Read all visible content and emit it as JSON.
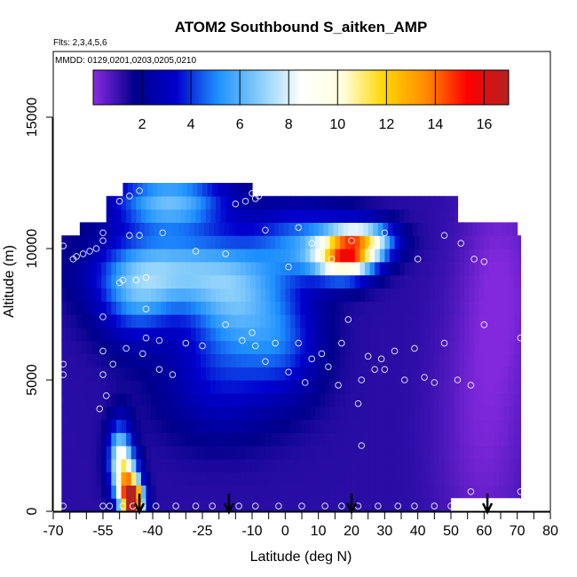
{
  "chart_data": {
    "type": "heatmap",
    "title": "ATOM2 Southbound S_aitken_AMP",
    "annotations": {
      "flights": "Flts: 2,3,4,5,6",
      "dates": "MMDD: 0129,0201,0203,0205,0210"
    },
    "xlabel": "Latitude (deg N)",
    "ylabel": "Altitude (m)",
    "xlim": [
      -70,
      80
    ],
    "ylim": [
      0,
      17500
    ],
    "x_ticks": [
      -70,
      -55,
      -40,
      -25,
      -10,
      0,
      10,
      20,
      30,
      40,
      50,
      60,
      70,
      80
    ],
    "x_tick_labels": [
      "-70",
      "-55",
      "-40",
      "-25",
      "-10",
      "0",
      "10",
      "20",
      "30",
      "40",
      "50",
      "60",
      "70",
      "80"
    ],
    "x_minor_ticks": [
      -65,
      -60,
      -50,
      -45,
      -35,
      -30,
      -20,
      -15,
      -5,
      5,
      15,
      25,
      35,
      45,
      55,
      65,
      75
    ],
    "y_ticks": [
      0,
      5000,
      10000,
      15000
    ],
    "y_tick_labels": [
      "0",
      "5000",
      "10000",
      "15000"
    ],
    "colorbar": {
      "min": 0,
      "max": 17,
      "ticks": [
        2,
        4,
        6,
        8,
        10,
        12,
        14,
        16
      ],
      "tick_labels": [
        "2",
        "4",
        "6",
        "8",
        "10",
        "12",
        "14",
        "16"
      ],
      "colors": [
        "#8a2be2",
        "#00008b",
        "#0000cd",
        "#1e90ff",
        "#87cefa",
        "#ffffff",
        "#ffffe0",
        "#ffd700",
        "#ff8c00",
        "#ff0000",
        "#b22222"
      ]
    },
    "altitude_levels_m": [
      250,
      750,
      1250,
      1750,
      2250,
      2750,
      3250,
      3750,
      4250,
      4750,
      5250,
      5750,
      6250,
      6750,
      7250,
      7750,
      8250,
      8750,
      9250,
      9750,
      10250,
      10750,
      11250,
      11750,
      12250
    ],
    "background_value": 1.2,
    "hotspots": [
      {
        "lat": -46,
        "alt": 400,
        "value": 16,
        "sigma_lat": 2.2,
        "sigma_alt": 500
      },
      {
        "lat": -48,
        "alt": 1200,
        "value": 8,
        "sigma_lat": 2.5,
        "sigma_alt": 700
      },
      {
        "lat": -50,
        "alt": 2200,
        "value": 5.5,
        "sigma_lat": 2.5,
        "sigma_alt": 900
      },
      {
        "lat": 18,
        "alt": 9800,
        "value": 11.5,
        "sigma_lat": 6,
        "sigma_alt": 600
      },
      {
        "lat": 25,
        "alt": 10300,
        "value": 6,
        "sigma_lat": 6,
        "sigma_alt": 500
      },
      {
        "lat": -35,
        "alt": 11800,
        "value": 5,
        "sigma_lat": 12,
        "sigma_alt": 800
      },
      {
        "lat": -35,
        "alt": 9200,
        "value": 4.5,
        "sigma_lat": 15,
        "sigma_alt": 1000
      },
      {
        "lat": -15,
        "alt": 8000,
        "value": 4,
        "sigma_lat": 10,
        "sigma_alt": 1500
      },
      {
        "lat": 5,
        "alt": 10200,
        "value": 3.5,
        "sigma_lat": 10,
        "sigma_alt": 1000
      },
      {
        "lat": -45,
        "alt": 8000,
        "value": 3,
        "sigma_lat": 8,
        "sigma_alt": 1200
      },
      {
        "lat": 0,
        "alt": 6500,
        "value": 2.5,
        "sigma_lat": 8,
        "sigma_alt": 1500
      },
      {
        "lat": -20,
        "alt": 5000,
        "value": 2,
        "sigma_lat": 12,
        "sigma_alt": 1500
      },
      {
        "lat": 60,
        "alt": 3000,
        "value": -0.9,
        "sigma_lat": 10,
        "sigma_alt": 4000
      },
      {
        "lat": 65,
        "alt": 9000,
        "value": -0.9,
        "sigma_lat": 8,
        "sigma_alt": 3000
      }
    ],
    "sample_points": [
      [
        -67,
        200
      ],
      [
        -55,
        200
      ],
      [
        -53,
        200
      ],
      [
        -49,
        200
      ],
      [
        -46,
        200
      ],
      [
        -43,
        200
      ],
      [
        -39,
        200
      ],
      [
        -33,
        200
      ],
      [
        -27,
        200
      ],
      [
        -22,
        200
      ],
      [
        -14,
        200
      ],
      [
        -9,
        200
      ],
      [
        -2,
        200
      ],
      [
        5,
        200
      ],
      [
        12,
        200
      ],
      [
        17,
        200
      ],
      [
        22,
        200
      ],
      [
        28,
        200
      ],
      [
        34,
        200
      ],
      [
        39,
        200
      ],
      [
        45,
        200
      ],
      [
        50,
        200
      ],
      [
        71,
        750
      ],
      [
        56,
        750
      ],
      [
        -67,
        5600
      ],
      [
        -67,
        5200
      ],
      [
        -54,
        4400
      ],
      [
        -55,
        5200
      ],
      [
        -52,
        5600
      ],
      [
        -56,
        3900
      ],
      [
        -34,
        5200
      ],
      [
        -38,
        5400
      ],
      [
        -43,
        6000
      ],
      [
        -42,
        6600
      ],
      [
        -48,
        6200
      ],
      [
        -55,
        6100
      ],
      [
        -55,
        7400
      ],
      [
        -42,
        7700
      ],
      [
        -45,
        8800
      ],
      [
        -50,
        8700
      ],
      [
        -49,
        8800
      ],
      [
        -42,
        8900
      ],
      [
        -38,
        6500
      ],
      [
        -30,
        6400
      ],
      [
        -25,
        6300
      ],
      [
        -18,
        7100
      ],
      [
        -13,
        6500
      ],
      [
        -10,
        6800
      ],
      [
        -9,
        6300
      ],
      [
        -6,
        5700
      ],
      [
        -3,
        6400
      ],
      [
        1,
        5300
      ],
      [
        4,
        6400
      ],
      [
        6,
        4900
      ],
      [
        8,
        5800
      ],
      [
        11,
        6000
      ],
      [
        13,
        5500
      ],
      [
        16,
        4800
      ],
      [
        17,
        6400
      ],
      [
        19,
        7300
      ],
      [
        22,
        4100
      ],
      [
        23,
        5000
      ],
      [
        25,
        5900
      ],
      [
        27,
        5400
      ],
      [
        29,
        5800
      ],
      [
        30,
        5400
      ],
      [
        33,
        6100
      ],
      [
        36,
        5000
      ],
      [
        39,
        6200
      ],
      [
        42,
        5100
      ],
      [
        45,
        4900
      ],
      [
        48,
        6400
      ],
      [
        52,
        5000
      ],
      [
        56,
        4800
      ],
      [
        60,
        7100
      ],
      [
        71,
        6600
      ],
      [
        -67,
        10100
      ],
      [
        -64,
        9600
      ],
      [
        -63,
        9700
      ],
      [
        -61,
        9800
      ],
      [
        -59,
        9900
      ],
      [
        -57,
        10000
      ],
      [
        -55,
        10300
      ],
      [
        -55,
        10600
      ],
      [
        -47,
        10500
      ],
      [
        -44,
        10500
      ],
      [
        -37,
        10600
      ],
      [
        -27,
        9900
      ],
      [
        -18,
        9800
      ],
      [
        -6,
        10700
      ],
      [
        1,
        9300
      ],
      [
        4,
        10800
      ],
      [
        8,
        10200
      ],
      [
        14,
        9600
      ],
      [
        20,
        10300
      ],
      [
        26,
        10000
      ],
      [
        30,
        10600
      ],
      [
        40,
        9600
      ],
      [
        48,
        10500
      ],
      [
        53,
        10200
      ],
      [
        57,
        9600
      ],
      [
        60,
        9500
      ],
      [
        70,
        11300
      ],
      [
        71,
        11300
      ],
      [
        23,
        2500
      ],
      [
        -50,
        11800
      ],
      [
        -47,
        12000
      ],
      [
        -44,
        12200
      ],
      [
        -15,
        11700
      ],
      [
        -12,
        11800
      ],
      [
        -9,
        11900
      ],
      [
        -8,
        12000
      ],
      [
        -10,
        12100
      ]
    ],
    "flight_markers_lat": [
      -44,
      -17,
      20,
      61
    ]
  }
}
